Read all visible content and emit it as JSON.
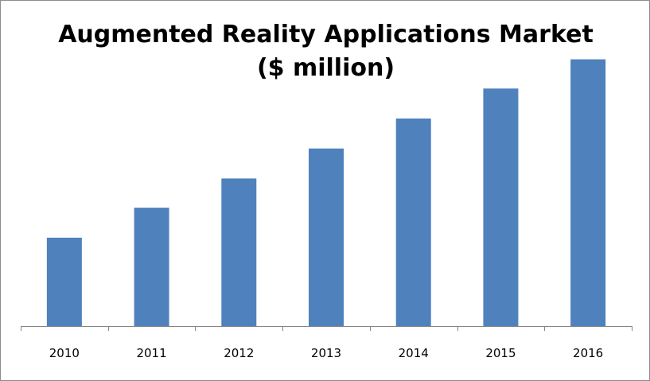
{
  "chart_data": {
    "type": "bar",
    "title_line1": "Augmented Reality Applications Market",
    "title_line2": "($ million)",
    "categories": [
      "2010",
      "2011",
      "2012",
      "2013",
      "2014",
      "2015",
      "2016"
    ],
    "values": [
      115,
      154,
      192,
      231,
      270,
      309,
      347
    ],
    "ylim": [
      0,
      360
    ],
    "bar_color": "#4f81bd",
    "axis_color": "#868686",
    "grid": false,
    "legend": "none",
    "y_axis_labels_shown": false
  }
}
